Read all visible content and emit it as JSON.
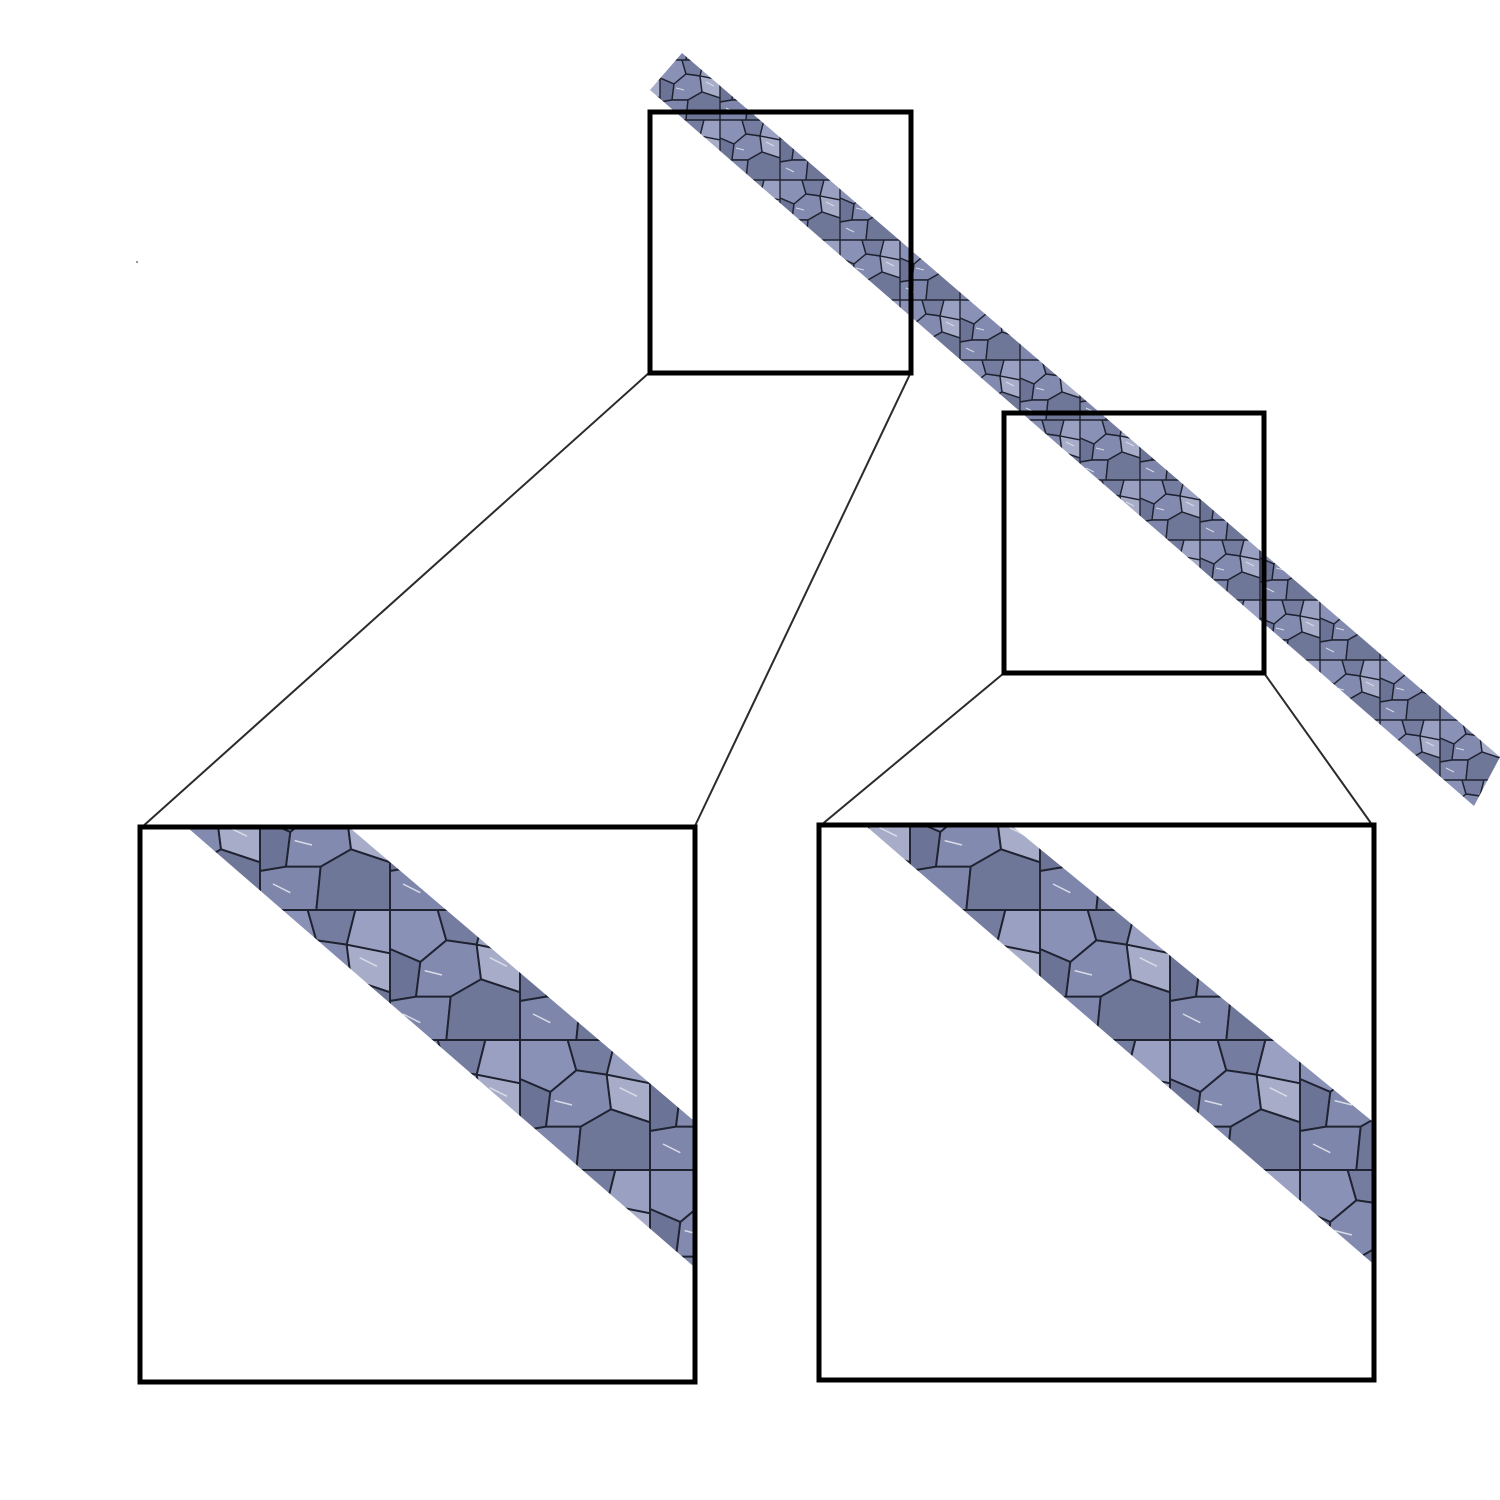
{
  "figure": {
    "background_color": "#ffffff",
    "frame_color": "#000000",
    "connector_color": "#2b2b2b",
    "texture": {
      "name": "blue-grey-cobblestone",
      "base_color": "#7b83a8",
      "stone_colors": [
        "#8a91b6",
        "#747ca0",
        "#9aa0c2",
        "#6b7396",
        "#a7acc9",
        "#838aaf"
      ],
      "mortar_color": "#1f2230",
      "highlight_color": "#d9dbe6"
    },
    "strip": {
      "name": "diagonal-textured-strip",
      "description_of_shape": "thin textured band running from upper-middle to lower-right"
    },
    "insets": [
      {
        "name": "zoom-region-1",
        "magnified": true
      },
      {
        "name": "zoom-region-2",
        "magnified": true
      }
    ]
  }
}
